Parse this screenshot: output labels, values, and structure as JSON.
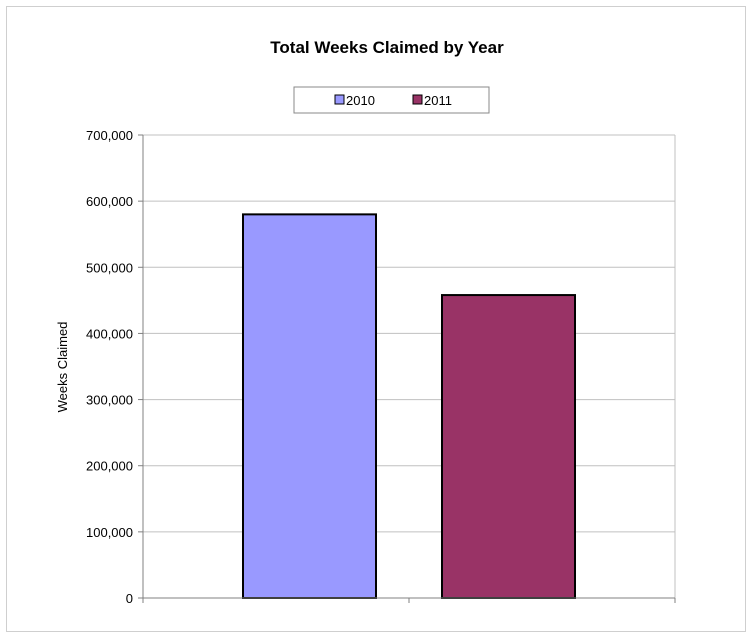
{
  "chart_data": {
    "type": "bar",
    "title": "Total Weeks Claimed by Year",
    "ylabel": "Weeks Claimed",
    "xlabel": "",
    "ylim": [
      0,
      700000
    ],
    "yticks": [
      0,
      100000,
      200000,
      300000,
      400000,
      500000,
      600000,
      700000
    ],
    "ytick_labels": [
      "0",
      "100,000",
      "200,000",
      "300,000",
      "400,000",
      "500,000",
      "600,000",
      "700,000"
    ],
    "grid": true,
    "legend": {
      "position": "top-center",
      "entries": [
        "2010",
        "2011"
      ]
    },
    "series": [
      {
        "name": "2010",
        "value": 580000,
        "color": "#9999FF"
      },
      {
        "name": "2011",
        "value": 458000,
        "color": "#993366"
      }
    ]
  }
}
